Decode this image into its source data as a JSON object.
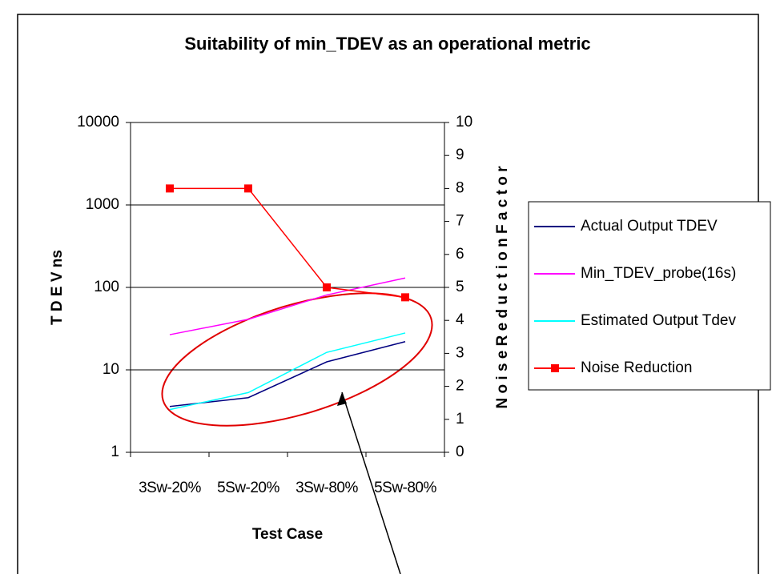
{
  "chart_data": {
    "type": "line",
    "title": "Suitability of min_TDEV as an operational metric",
    "xlabel": "Test Case",
    "ylabel": "T D E V  ns",
    "y2label": "N o i s e   R e d u c t i o n   F a c t o r",
    "categories": [
      "3Sw-20%",
      "5Sw-20%",
      "3Sw-80%",
      "5Sw-80%"
    ],
    "series": [
      {
        "name": "Actual Output TDEV",
        "color": "#000080",
        "values": [
          3.6,
          4.6,
          12.5,
          22
        ]
      },
      {
        "name": "Min_TDEV_probe(16s)",
        "color": "#ff00ff",
        "values": [
          26.7,
          41,
          81,
          130
        ]
      },
      {
        "name": "Estimated Output Tdev",
        "color": "#00ffff",
        "values": [
          3.3,
          5.3,
          16.3,
          28
        ]
      },
      {
        "name": "Noise Reduction",
        "color": "#ff0000",
        "axis": "y2",
        "marker": "square",
        "values": [
          8,
          8,
          5,
          4.7
        ]
      }
    ],
    "ylog": true,
    "ylim": [
      1,
      10000
    ],
    "yticks": [
      1,
      10,
      100,
      1000,
      10000
    ],
    "y2lim": [
      0,
      10
    ],
    "y2ticks": [
      0,
      1,
      2,
      3,
      4,
      5,
      6,
      7,
      8,
      9,
      10
    ],
    "grid": true,
    "legend": "right"
  }
}
